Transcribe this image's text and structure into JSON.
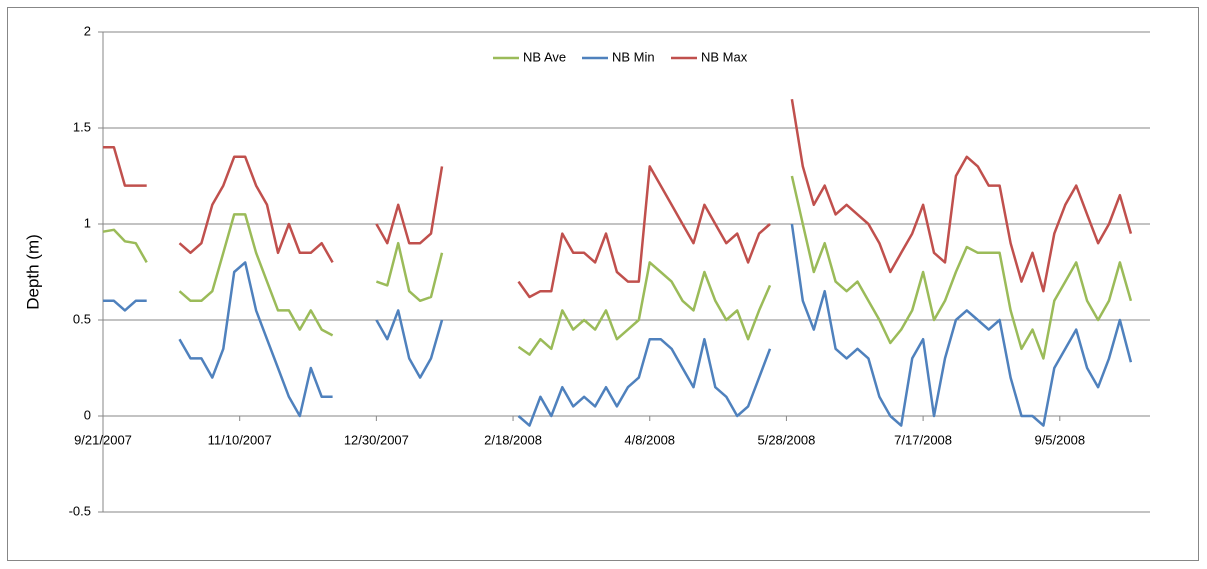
{
  "chart_data": {
    "type": "line",
    "y_label": "Depth (m)",
    "x": [
      "9/21/2007",
      "9/25/2007",
      "9/29/2007",
      "10/3/2007",
      "10/7/2007",
      "10/11/2007",
      "10/15/2007",
      "10/19/2007",
      "10/23/2007",
      "10/27/2007",
      "10/31/2007",
      "11/4/2007",
      "11/8/2007",
      "11/12/2007",
      "11/16/2007",
      "11/20/2007",
      "11/24/2007",
      "11/28/2007",
      "12/2/2007",
      "12/6/2007",
      "12/10/2007",
      "12/14/2007",
      "12/18/2007",
      "12/22/2007",
      "12/26/2007",
      "12/30/2007",
      "1/3/2008",
      "1/7/2008",
      "1/11/2008",
      "1/15/2008",
      "1/19/2008",
      "1/23/2008",
      "1/27/2008",
      "1/31/2008",
      "2/4/2008",
      "2/8/2008",
      "2/12/2008",
      "2/16/2008",
      "2/20/2008",
      "2/24/2008",
      "2/28/2008",
      "3/3/2008",
      "3/7/2008",
      "3/11/2008",
      "3/15/2008",
      "3/19/2008",
      "3/23/2008",
      "3/27/2008",
      "3/31/2008",
      "4/4/2008",
      "4/8/2008",
      "4/12/2008",
      "4/16/2008",
      "4/20/2008",
      "4/24/2008",
      "4/28/2008",
      "5/2/2008",
      "5/6/2008",
      "5/10/2008",
      "5/14/2008",
      "5/18/2008",
      "5/22/2008",
      "5/26/2008",
      "5/30/2008",
      "6/3/2008",
      "6/7/2008",
      "6/11/2008",
      "6/15/2008",
      "6/19/2008",
      "6/23/2008",
      "6/27/2008",
      "7/1/2008",
      "7/5/2008",
      "7/9/2008",
      "7/13/2008",
      "7/17/2008",
      "7/21/2008",
      "7/25/2008",
      "7/29/2008",
      "8/2/2008",
      "8/6/2008",
      "8/10/2008",
      "8/14/2008",
      "8/18/2008",
      "8/22/2008",
      "8/26/2008",
      "8/30/2008",
      "9/3/2008",
      "9/7/2008",
      "9/11/2008",
      "9/15/2008",
      "9/19/2008",
      "9/23/2008",
      "9/27/2008",
      "10/1/2008"
    ],
    "series": [
      {
        "name": "NB Ave",
        "color": "#9bbb59",
        "values": [
          0.96,
          0.97,
          0.91,
          0.9,
          0.8,
          null,
          null,
          0.65,
          0.6,
          0.6,
          0.65,
          0.85,
          1.05,
          1.05,
          0.85,
          0.7,
          0.55,
          0.55,
          0.45,
          0.55,
          0.45,
          0.42,
          null,
          null,
          null,
          0.7,
          0.68,
          0.9,
          0.65,
          0.6,
          0.62,
          0.85,
          null,
          null,
          null,
          null,
          null,
          null,
          0.36,
          0.32,
          0.4,
          0.35,
          0.55,
          0.45,
          0.5,
          0.45,
          0.55,
          0.4,
          0.45,
          0.5,
          0.8,
          0.75,
          0.7,
          0.6,
          0.55,
          0.75,
          0.6,
          0.5,
          0.55,
          0.4,
          0.55,
          0.68,
          null,
          1.25,
          1.0,
          0.75,
          0.9,
          0.7,
          0.65,
          0.7,
          0.6,
          0.5,
          0.38,
          0.45,
          0.55,
          0.75,
          0.5,
          0.6,
          0.75,
          0.88,
          0.85,
          0.85,
          0.85,
          0.55,
          0.35,
          0.45,
          0.3,
          0.6,
          0.7,
          0.8,
          0.6,
          0.5,
          0.6,
          0.8,
          0.6
        ]
      },
      {
        "name": "NB Min",
        "color": "#4f81bd",
        "values": [
          0.6,
          0.6,
          0.55,
          0.6,
          0.6,
          null,
          null,
          0.4,
          0.3,
          0.3,
          0.2,
          0.35,
          0.75,
          0.8,
          0.55,
          0.4,
          0.25,
          0.1,
          0,
          0.25,
          0.1,
          0.1,
          null,
          null,
          null,
          0.5,
          0.4,
          0.55,
          0.3,
          0.2,
          0.3,
          0.5,
          null,
          null,
          null,
          null,
          null,
          null,
          0,
          -0.05,
          0.1,
          0,
          0.15,
          0.05,
          0.1,
          0.05,
          0.15,
          0.05,
          0.15,
          0.2,
          0.4,
          0.4,
          0.35,
          0.25,
          0.15,
          0.4,
          0.15,
          0.1,
          0,
          0.05,
          0.2,
          0.35,
          null,
          1.0,
          0.6,
          0.45,
          0.65,
          0.35,
          0.3,
          0.35,
          0.3,
          0.1,
          0,
          -0.05,
          0.3,
          0.4,
          0,
          0.3,
          0.5,
          0.55,
          0.5,
          0.45,
          0.5,
          0.2,
          0,
          0,
          -0.05,
          0.25,
          0.35,
          0.45,
          0.25,
          0.15,
          0.3,
          0.5,
          0.28
        ]
      },
      {
        "name": "NB Max",
        "color": "#c0504d",
        "values": [
          1.4,
          1.4,
          1.2,
          1.2,
          1.2,
          null,
          null,
          0.9,
          0.85,
          0.9,
          1.1,
          1.2,
          1.35,
          1.35,
          1.2,
          1.1,
          0.85,
          1.0,
          0.85,
          0.85,
          0.9,
          0.8,
          null,
          null,
          null,
          1.0,
          0.9,
          1.1,
          0.9,
          0.9,
          0.95,
          1.3,
          null,
          null,
          null,
          null,
          null,
          null,
          0.7,
          0.62,
          0.65,
          0.65,
          0.95,
          0.85,
          0.85,
          0.8,
          0.95,
          0.75,
          0.7,
          0.7,
          1.3,
          1.2,
          1.1,
          1.0,
          0.9,
          1.1,
          1.0,
          0.9,
          0.95,
          0.8,
          0.95,
          1.0,
          null,
          1.65,
          1.3,
          1.1,
          1.2,
          1.05,
          1.1,
          1.05,
          1.0,
          0.9,
          0.75,
          0.85,
          0.95,
          1.1,
          0.85,
          0.8,
          1.25,
          1.35,
          1.3,
          1.2,
          1.2,
          0.9,
          0.7,
          0.85,
          0.65,
          0.95,
          1.1,
          1.2,
          1.05,
          0.9,
          1.0,
          1.15,
          0.95
        ]
      }
    ],
    "xlim": [
      "9/21/2007",
      "10/8/2008"
    ],
    "xticks": [
      "9/21/2007",
      "11/10/2007",
      "12/30/2007",
      "2/18/2008",
      "4/8/2008",
      "5/28/2008",
      "7/17/2008",
      "9/5/2008"
    ],
    "ylim": [
      -0.5,
      2
    ],
    "yticks": [
      -0.5,
      0,
      0.5,
      1,
      1.5,
      2
    ],
    "grid": true,
    "legend": "top"
  }
}
